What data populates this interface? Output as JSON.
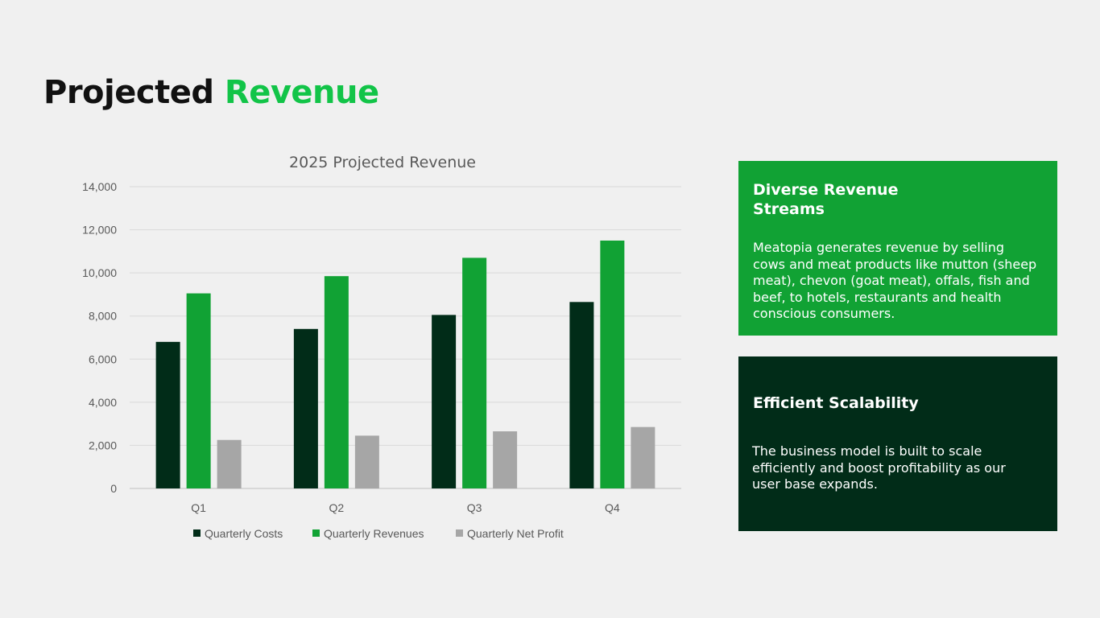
{
  "slide": {
    "title_part1": "Projected",
    "title_part2": "Revenue"
  },
  "cards": [
    {
      "heading": "Diverse Revenue Streams",
      "body": "Meatopia generates revenue by selling cows and meat products like mutton (sheep meat), chevon (goat meat), offals, fish and beef, to hotels, restaurants and health conscious consumers.",
      "color": "#11a234"
    },
    {
      "heading": "Efficient Scalability",
      "body": "The business model is built to scale efficiently and boost profitability as our user base expands.",
      "color": "#012c18"
    }
  ],
  "chart_data": {
    "type": "bar",
    "title": "2025 Projected Revenue",
    "categories": [
      "Q1",
      "Q2",
      "Q3",
      "Q4"
    ],
    "series": [
      {
        "name": "Quarterly Costs",
        "values": [
          6800,
          7400,
          8050,
          8650
        ],
        "color": "#012c18"
      },
      {
        "name": "Quarterly Revenues",
        "values": [
          9050,
          9850,
          10700,
          11500
        ],
        "color": "#11a234"
      },
      {
        "name": "Quarterly Net Profit",
        "values": [
          2250,
          2450,
          2650,
          2850
        ],
        "color": "#a6a6a6"
      }
    ],
    "yticks": [
      "0",
      "2,000",
      "4,000",
      "6,000",
      "8,000",
      "10,000",
      "12,000",
      "14,000"
    ],
    "ylim": [
      0,
      14000
    ],
    "grid": true,
    "legend": "bottom"
  }
}
